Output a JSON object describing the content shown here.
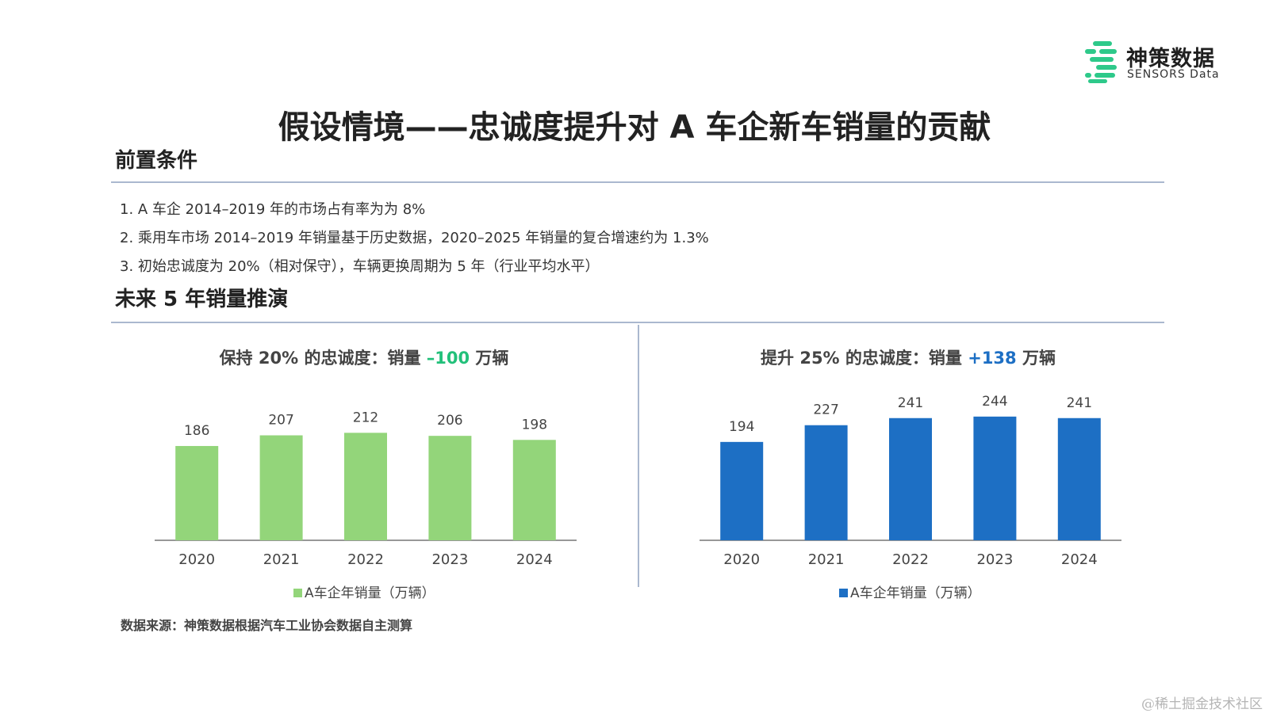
{
  "logo": {
    "name_cn": "神策数据",
    "name_en": "SENSORS Data"
  },
  "title": "假设情境——忠诚度提升对 A 车企新车销量的贡献",
  "preconditions": {
    "heading": "前置条件",
    "items": [
      "1.  A 车企 2014–2019 年的市场占有率为为 8%",
      "2.  乘用车市场 2014–2019 年销量基于历史数据，2020–2025 年销量的复合增速约为 1.3%",
      "3.  初始忠诚度为 20%（相对保守），车辆更换周期为 5 年（行业平均水平）"
    ]
  },
  "forecast": {
    "heading": "未来 5 年销量推演"
  },
  "left_chart": {
    "title_prefix": "保持 20% 的忠诚度：销量 ",
    "title_value": "–100",
    "title_suffix": " 万辆",
    "legend": "A车企年销量（万辆）"
  },
  "right_chart": {
    "title_prefix": "提升 25% 的忠诚度：销量 ",
    "title_value": "+138",
    "title_suffix": " 万辆",
    "legend": "A车企年销量（万辆）"
  },
  "colors": {
    "green": "#93d57a",
    "blue": "#1d6fc4",
    "green_text": "#22c07a",
    "axis": "#777777",
    "label": "#444444"
  },
  "source": "数据来源：神策数据根据汽车工业协会数据自主测算",
  "watermark": "@稀土掘金技术社区",
  "chart_data": [
    {
      "type": "bar",
      "title": "保持 20% 的忠诚度：销量 –100 万辆",
      "categories": [
        "2020",
        "2021",
        "2022",
        "2023",
        "2024"
      ],
      "series": [
        {
          "name": "A车企年销量（万辆）",
          "values": [
            186,
            207,
            212,
            206,
            198
          ]
        }
      ],
      "ylim": [
        0,
        250
      ],
      "xlabel": "",
      "ylabel": "",
      "legend_position": "bottom-center",
      "grid": false
    },
    {
      "type": "bar",
      "title": "提升 25% 的忠诚度：销量 +138 万辆",
      "categories": [
        "2020",
        "2021",
        "2022",
        "2023",
        "2024"
      ],
      "series": [
        {
          "name": "A车企年销量（万辆）",
          "values": [
            194,
            227,
            241,
            244,
            241
          ]
        }
      ],
      "ylim": [
        0,
        250
      ],
      "xlabel": "",
      "ylabel": "",
      "legend_position": "bottom-center",
      "grid": false
    }
  ]
}
